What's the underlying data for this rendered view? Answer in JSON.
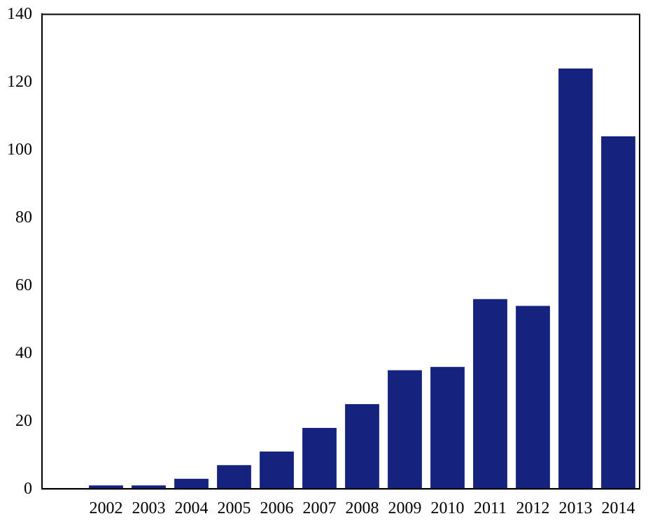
{
  "chart_data": {
    "type": "bar",
    "categories": [
      null,
      "2002",
      "2003",
      "2004",
      "2005",
      "2006",
      "2007",
      "2008",
      "2009",
      "2010",
      "2011",
      "2012",
      "2013",
      "2014"
    ],
    "values": [
      null,
      1,
      1,
      3,
      7,
      11,
      18,
      25,
      35,
      36,
      56,
      54,
      124,
      104
    ],
    "color": "#16237e",
    "ylim": [
      0,
      140
    ],
    "yticks": [
      0,
      20,
      40,
      60,
      80,
      100,
      120,
      140
    ],
    "grid": false,
    "legend": false
  }
}
